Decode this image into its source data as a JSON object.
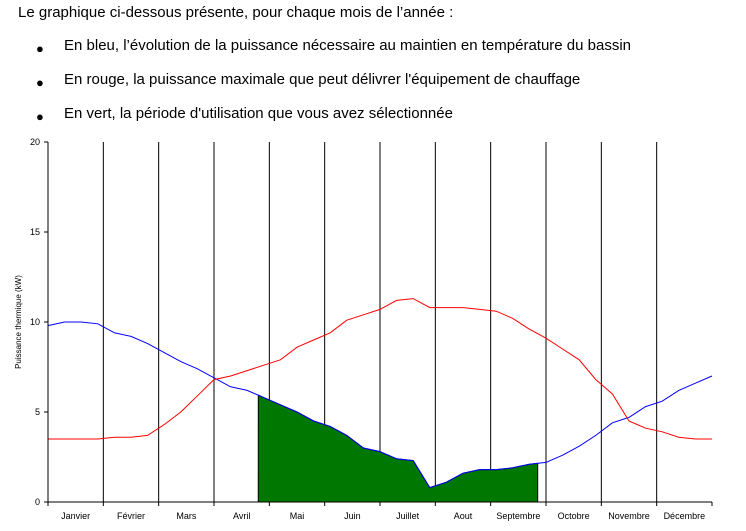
{
  "intro": "Le graphique ci-dessous présente, pour chaque mois de l’année :",
  "bullets": [
    "En bleu, l’évolution de la puissance nécessaire au maintien en température du bassin",
    "En rouge, la puissance maximale que peut délivrer l'équipement de chauffage",
    "En vert, la période d'utilisation que vous avez sélectionnée"
  ],
  "chart_data": {
    "type": "line",
    "ylabel": "Puissance thermique (kW)",
    "ylim": [
      0,
      20
    ],
    "yticks": [
      0,
      5,
      10,
      15,
      20
    ],
    "grid": "vertical month dividers",
    "months": [
      "Janvier",
      "Février",
      "Mars",
      "Avril",
      "Mai",
      "Juin",
      "Juillet",
      "Aout",
      "Septembre",
      "Octobre",
      "Novembre",
      "Décembre"
    ],
    "x_range": [
      0,
      12
    ],
    "series": [
      {
        "color": "#0000ff",
        "x": [
          0,
          0.3,
          0.6,
          0.9,
          1.2,
          1.5,
          1.8,
          2.1,
          2.4,
          2.7,
          3.0,
          3.3,
          3.6,
          3.9,
          4.2,
          4.5,
          4.8,
          5.1,
          5.4,
          5.7,
          6.0,
          6.3,
          6.6,
          6.9,
          7.2,
          7.5,
          7.8,
          8.1,
          8.4,
          8.7,
          9.0,
          9.3,
          9.6,
          9.9,
          10.2,
          10.5,
          10.8,
          11.1,
          11.4,
          11.7,
          12.0
        ],
        "values": [
          9.8,
          10.0,
          10.0,
          9.9,
          9.4,
          9.2,
          8.8,
          8.3,
          7.8,
          7.4,
          6.9,
          6.4,
          6.2,
          5.8,
          5.4,
          5.0,
          4.5,
          4.2,
          3.7,
          3.0,
          2.8,
          2.4,
          2.3,
          0.8,
          1.1,
          1.6,
          1.8,
          1.8,
          1.9,
          2.1,
          2.2,
          2.6,
          3.1,
          3.7,
          4.4,
          4.7,
          5.3,
          5.6,
          6.2,
          6.6,
          7.0
        ]
      },
      {
        "color": "#ff0000",
        "x": [
          0,
          0.3,
          0.6,
          0.9,
          1.2,
          1.5,
          1.8,
          2.1,
          2.4,
          2.7,
          3.0,
          3.3,
          3.6,
          3.9,
          4.2,
          4.5,
          4.8,
          5.1,
          5.4,
          5.7,
          6.0,
          6.3,
          6.6,
          6.9,
          7.2,
          7.5,
          7.8,
          8.1,
          8.4,
          8.7,
          9.0,
          9.3,
          9.6,
          9.9,
          10.2,
          10.5,
          10.8,
          11.1,
          11.4,
          11.7,
          12.0
        ],
        "values": [
          3.5,
          3.5,
          3.5,
          3.5,
          3.6,
          3.6,
          3.7,
          4.3,
          5.0,
          5.9,
          6.8,
          7.0,
          7.3,
          7.6,
          7.9,
          8.6,
          9.0,
          9.4,
          10.1,
          10.4,
          10.7,
          11.2,
          11.3,
          10.8,
          10.8,
          10.8,
          10.7,
          10.6,
          10.2,
          9.6,
          9.1,
          8.5,
          7.9,
          6.8,
          6.0,
          4.5,
          4.1,
          3.9,
          3.6,
          3.5,
          3.5
        ]
      }
    ],
    "selected_period": {
      "color": "#007700",
      "x_start": 3.8,
      "x_end": 8.85
    }
  }
}
